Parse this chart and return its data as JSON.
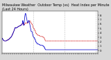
{
  "title_line1": "Milwaukee Weather  Outdoor Temp (vs)  Heat Index per Minute (Last 24 Hours)",
  "background_color": "#f0f0f0",
  "ylim": [
    -5,
    90
  ],
  "yticks": [
    0,
    10,
    20,
    30,
    40,
    50,
    60,
    70,
    80
  ],
  "ytick_labels": [
    "0",
    "1",
    "2",
    "3",
    "4",
    "5",
    "6",
    "7",
    "8"
  ],
  "line1_color": "#0000cc",
  "line1_style": "-",
  "line2_color": "#cc0000",
  "line2_style": "--",
  "vline_positions": [
    360,
    720,
    1080
  ],
  "title_fontsize": 3.5,
  "tick_fontsize": 2.8,
  "linewidth": 0.55,
  "fig_bg": "#d8d8d8",
  "plot_bg": "#ffffff",
  "outdoor_temp": [
    28,
    28,
    27,
    27,
    27,
    26,
    26,
    26,
    25,
    25,
    25,
    24,
    24,
    24,
    23,
    23,
    23,
    23,
    23,
    23,
    23,
    23,
    22,
    22,
    22,
    22,
    22,
    22,
    22,
    22,
    22,
    22,
    22,
    22,
    22,
    22,
    22,
    22,
    22,
    22,
    22,
    22,
    22,
    22,
    22,
    22,
    22,
    22,
    22,
    23,
    23,
    23,
    23,
    23,
    23,
    23,
    23,
    24,
    24,
    24,
    24,
    24,
    24,
    24,
    24,
    24,
    24,
    24,
    24,
    24,
    25,
    25,
    25,
    25,
    25,
    25,
    25,
    26,
    26,
    26,
    26,
    26,
    26,
    26,
    27,
    27,
    27,
    27,
    28,
    28,
    28,
    28,
    28,
    29,
    29,
    29,
    30,
    30,
    30,
    30,
    30,
    30,
    31,
    31,
    31,
    31,
    31,
    31,
    32,
    32,
    33,
    33,
    34,
    34,
    35,
    36,
    36,
    36,
    36,
    37,
    37,
    38,
    38,
    38,
    39,
    39,
    40,
    40,
    41,
    41,
    42,
    42,
    43,
    43,
    44,
    44,
    45,
    45,
    46,
    46,
    47,
    48,
    48,
    49,
    49,
    50,
    50,
    51,
    51,
    52,
    52,
    52,
    52,
    52,
    52,
    52,
    52,
    51,
    51,
    51,
    51,
    51,
    51,
    51,
    51,
    51,
    52,
    52,
    52,
    52,
    52,
    53,
    53,
    53,
    53,
    53,
    53,
    53,
    53,
    53,
    53,
    54,
    54,
    54,
    54,
    54,
    54,
    54,
    54,
    55,
    55,
    55,
    55,
    55,
    55,
    55,
    55,
    56,
    56,
    56,
    56,
    56,
    56,
    56,
    56,
    56,
    56,
    56,
    56,
    57,
    57,
    57,
    57,
    58,
    58,
    58,
    58,
    58,
    58,
    58,
    58,
    58,
    58,
    58,
    58,
    58,
    58,
    59,
    59,
    60,
    60,
    61,
    61,
    62,
    62,
    63,
    63,
    63,
    63,
    62,
    62,
    61,
    61,
    60,
    60,
    59,
    59,
    58,
    58,
    57,
    57,
    57,
    57,
    58,
    58,
    58,
    58,
    59,
    59,
    60,
    60,
    60,
    61,
    61,
    61,
    62,
    62,
    62,
    62,
    62,
    62,
    62,
    62,
    62,
    62,
    62,
    62,
    63,
    63,
    63,
    63,
    62,
    62,
    62,
    62,
    62,
    62,
    62,
    62,
    62,
    62,
    62,
    62,
    62,
    63,
    63,
    63,
    63,
    63,
    63,
    63,
    64,
    64,
    64,
    65,
    65,
    65,
    65,
    65,
    66,
    66,
    66,
    66,
    66,
    66,
    67,
    67,
    67,
    67,
    67,
    67,
    67,
    67,
    67,
    67,
    67,
    66,
    66,
    65,
    65,
    64,
    64,
    63,
    63,
    62,
    62,
    61,
    61,
    61,
    61,
    61,
    61,
    61,
    61,
    61,
    60,
    60,
    59,
    59,
    58,
    58,
    57,
    56,
    55,
    55,
    54,
    53,
    53,
    52,
    52,
    51,
    50,
    50,
    50,
    50,
    50,
    50,
    50,
    50,
    49,
    49,
    49,
    49,
    48,
    47,
    47,
    46,
    46,
    46,
    46,
    45,
    45,
    44,
    44,
    43,
    42,
    42,
    41,
    40,
    40,
    39,
    39,
    39,
    39,
    39,
    39,
    39,
    39,
    38,
    38,
    37,
    36,
    36,
    35,
    35,
    35,
    35,
    35,
    35,
    35,
    35,
    35,
    35,
    35,
    35,
    35,
    35,
    35,
    35,
    35,
    35,
    35,
    34,
    34,
    34,
    34,
    34,
    34,
    34,
    34,
    34,
    34,
    33,
    33,
    33,
    33,
    33,
    33,
    32,
    32,
    32,
    32,
    32,
    32,
    32,
    32,
    32,
    32,
    32,
    32,
    32,
    32,
    32,
    32,
    32,
    32,
    32,
    32,
    32,
    32,
    32,
    32,
    32,
    32,
    32,
    31,
    31,
    31,
    31,
    31,
    31,
    31,
    31,
    31,
    30,
    30,
    30,
    30,
    30,
    30,
    29,
    29,
    29,
    29,
    28,
    28,
    28,
    27,
    27,
    26,
    26,
    26,
    25,
    25,
    24,
    24,
    24,
    23,
    23,
    23,
    22,
    22,
    22,
    22,
    22,
    22,
    22,
    22,
    22,
    22,
    22,
    22,
    22,
    22,
    22,
    22,
    22,
    22,
    22,
    22,
    22,
    22,
    22,
    22,
    22,
    22,
    22,
    22,
    22,
    22,
    22,
    22,
    22,
    22,
    22,
    22,
    22,
    22,
    22,
    22,
    22,
    22,
    22,
    22,
    22,
    22,
    22,
    22,
    22,
    22,
    22,
    22,
    22,
    22,
    22,
    22,
    22,
    22,
    22,
    22,
    22,
    22,
    22,
    22,
    22,
    22,
    22,
    22,
    22,
    22,
    22,
    22,
    22,
    22,
    22,
    22,
    22,
    22,
    22,
    22,
    22,
    22,
    22,
    22,
    22,
    22,
    22,
    22,
    22,
    22,
    22,
    22,
    22,
    22,
    22,
    22,
    22,
    22,
    22,
    22,
    22,
    22,
    22,
    22,
    22,
    22,
    22,
    22,
    22,
    22,
    22,
    22,
    22,
    22,
    22,
    22,
    22,
    22,
    22,
    22,
    22,
    22,
    22,
    22,
    22,
    22,
    22,
    22,
    22,
    22,
    22,
    22,
    22,
    22,
    22,
    22,
    22,
    22,
    22,
    22,
    22,
    22,
    22,
    22,
    22,
    22,
    22,
    22,
    22,
    22,
    22,
    22,
    22,
    22,
    22,
    22,
    22,
    22,
    22,
    22,
    22,
    22,
    22,
    22,
    22,
    22,
    22,
    22,
    22,
    22,
    22,
    22,
    22,
    22,
    22,
    22,
    22,
    22,
    22,
    22,
    22,
    22,
    22,
    22,
    22,
    22,
    22,
    22,
    22,
    22,
    22,
    22,
    22,
    22,
    22,
    22,
    22,
    22,
    22,
    22,
    22,
    22,
    22,
    22,
    22,
    22,
    22,
    22,
    22,
    22,
    22,
    22,
    22,
    22,
    22,
    22,
    22,
    22,
    22,
    22,
    22,
    22,
    22,
    22,
    22,
    22,
    22,
    22,
    22,
    22,
    22,
    22,
    22,
    22,
    22,
    22,
    22,
    22,
    22,
    22,
    22,
    22,
    22,
    22,
    22,
    22,
    22,
    22,
    22,
    22,
    22,
    22,
    22,
    22,
    22,
    22,
    22,
    22,
    22,
    22,
    22,
    22,
    22,
    22,
    22,
    22,
    22,
    22,
    22,
    22,
    22,
    22,
    22,
    22,
    22,
    22,
    22,
    22,
    22,
    22,
    22,
    22,
    22,
    22,
    22,
    22,
    22,
    22,
    22,
    22,
    22,
    22,
    22,
    22,
    22,
    22,
    22,
    22,
    22,
    22,
    22,
    22,
    22,
    22,
    22,
    22,
    22,
    22,
    22,
    22,
    22,
    22,
    22,
    22,
    22,
    22,
    22,
    22,
    22,
    22,
    22,
    22,
    22,
    22,
    22,
    22,
    22,
    22,
    22,
    22,
    22,
    22,
    22,
    22,
    22,
    22,
    22,
    22,
    22,
    22,
    22,
    22,
    22,
    22,
    22,
    22,
    22,
    22,
    22,
    22,
    22,
    22,
    22,
    22,
    22,
    22,
    22,
    22,
    22,
    22,
    22,
    22,
    22,
    22,
    22,
    22,
    22,
    22,
    22,
    22,
    22,
    22,
    22,
    22,
    22,
    22,
    22,
    22,
    22,
    22,
    22,
    22,
    22,
    22,
    22,
    22,
    22,
    22,
    22,
    22,
    22,
    22,
    22,
    22,
    22,
    22,
    22,
    22,
    22,
    22,
    22,
    22,
    22,
    22,
    22,
    22,
    22,
    22,
    22,
    22,
    22,
    22,
    22,
    22,
    22,
    22,
    22,
    22,
    22,
    22,
    22,
    22,
    22,
    22,
    22,
    22,
    22,
    22,
    22,
    22,
    22,
    22,
    22,
    22,
    22,
    22,
    22,
    22,
    22,
    22,
    22,
    22,
    22,
    22,
    22,
    22,
    22,
    22,
    22,
    22,
    22,
    22,
    22,
    22,
    22,
    22,
    22,
    22,
    22,
    22,
    22,
    22,
    22,
    22,
    22,
    22,
    22,
    22,
    22,
    22,
    22,
    22,
    22,
    22,
    22,
    22,
    22,
    22,
    22,
    22,
    22,
    22,
    22,
    22,
    22,
    22,
    22,
    22,
    22,
    22,
    22,
    22,
    22,
    22,
    22,
    22,
    22,
    22,
    22,
    22,
    22,
    22,
    22,
    22,
    22,
    22,
    22,
    22,
    22,
    22,
    22,
    22,
    22,
    22,
    22,
    22,
    22,
    22,
    22,
    22,
    22,
    22,
    22,
    22,
    22,
    22,
    22,
    22,
    22,
    22,
    22,
    22,
    22,
    22,
    22,
    22,
    22,
    22,
    22,
    22,
    22,
    22,
    22,
    22,
    22,
    22,
    22,
    22,
    22,
    22,
    22,
    22,
    22,
    22,
    22,
    22,
    22,
    22,
    22,
    22,
    22,
    22,
    22,
    22,
    22,
    22,
    22,
    22,
    22,
    22,
    22,
    22,
    22,
    22,
    22,
    22,
    22,
    22,
    22,
    22,
    22,
    22,
    22,
    22,
    22,
    22,
    22,
    22,
    22,
    22,
    22,
    22,
    22,
    22,
    22,
    22,
    22,
    22,
    22,
    22,
    22,
    22,
    22,
    22
  ],
  "heat_index": [
    28,
    28,
    27,
    27,
    27,
    26,
    26,
    26,
    25,
    25,
    25,
    24,
    24,
    24,
    23,
    23,
    23,
    23,
    23,
    23,
    23,
    23,
    22,
    22,
    22,
    22,
    22,
    22,
    22,
    22,
    22,
    22,
    22,
    22,
    22,
    22,
    22,
    22,
    22,
    22,
    22,
    22,
    22,
    22,
    22,
    22,
    22,
    22,
    22,
    23,
    23,
    23,
    23,
    23,
    23,
    23,
    23,
    24,
    24,
    24,
    24,
    24,
    24,
    24,
    24,
    24,
    24,
    24,
    24,
    24,
    25,
    25,
    25,
    25,
    25,
    25,
    25,
    26,
    26,
    26,
    26,
    26,
    26,
    26,
    27,
    27,
    27,
    27,
    28,
    28,
    28,
    28,
    28,
    29,
    29,
    29,
    30,
    30,
    30,
    30,
    30,
    30,
    31,
    31,
    31,
    31,
    31,
    31,
    32,
    32,
    33,
    33,
    34,
    34,
    35,
    36,
    36,
    36,
    36,
    37,
    37,
    38,
    38,
    38,
    39,
    39,
    40,
    40,
    41,
    41,
    42,
    42,
    43,
    43,
    44,
    44,
    45,
    45,
    46,
    46,
    47,
    48,
    48,
    49,
    49,
    50,
    50,
    51,
    51,
    52,
    52,
    52,
    52,
    52,
    52,
    52,
    52,
    51,
    51,
    51,
    51,
    51,
    51,
    51,
    51,
    51,
    52,
    52,
    52,
    52,
    52,
    53,
    53,
    53,
    53,
    53,
    53,
    53,
    53,
    53,
    53,
    54,
    54,
    54,
    54,
    54,
    54,
    54,
    54,
    55,
    55,
    55,
    55,
    55,
    55,
    55,
    55,
    56,
    56,
    56,
    56,
    56,
    56,
    56,
    56,
    56,
    56,
    56,
    56,
    57,
    57,
    57,
    57,
    58,
    58,
    58,
    58,
    58,
    58,
    58,
    58,
    58,
    58,
    58,
    58,
    58,
    58,
    59,
    59,
    60,
    60,
    61,
    61,
    62,
    62,
    65,
    67,
    68,
    68,
    67,
    66,
    65,
    64,
    63,
    62,
    61,
    60,
    59,
    58,
    57,
    58,
    60,
    62,
    64,
    64,
    66,
    68,
    70,
    72,
    74,
    76,
    78,
    79,
    80,
    81,
    82,
    83,
    84,
    84,
    84,
    84,
    84,
    83,
    82,
    81,
    80,
    79,
    78,
    77,
    76,
    75,
    74,
    73,
    72,
    71,
    70,
    69,
    68,
    67,
    66,
    65,
    64,
    63,
    63,
    63,
    63,
    63,
    63,
    63,
    63,
    64,
    65,
    66,
    67,
    68,
    68,
    68,
    68,
    68,
    68,
    68,
    67,
    66,
    65,
    64,
    63,
    62,
    61,
    60,
    59,
    58,
    57,
    56,
    55,
    54,
    53,
    52,
    51,
    50,
    49,
    48,
    47,
    46,
    45,
    44,
    43,
    43,
    43,
    43,
    43,
    43,
    43,
    43,
    43,
    43,
    43,
    42,
    41,
    40,
    39,
    38,
    37,
    36,
    35,
    35,
    34,
    33,
    33,
    32,
    32,
    31,
    30,
    30,
    30,
    30,
    30,
    30,
    30,
    30,
    29,
    29,
    29,
    29,
    28,
    27,
    27,
    26,
    26,
    26,
    26,
    25,
    25,
    24,
    24,
    23,
    22,
    22,
    21,
    20,
    20,
    19,
    19,
    19,
    19,
    19,
    19,
    19,
    19,
    18,
    18,
    17,
    16,
    16,
    15,
    15,
    15,
    15,
    15,
    15,
    15,
    15,
    15,
    15,
    15,
    15,
    15,
    15,
    15,
    15,
    15,
    15,
    15,
    14,
    14,
    14,
    14,
    14,
    14,
    14,
    14,
    14,
    14,
    13,
    13,
    13,
    13,
    13,
    13,
    12,
    12,
    12,
    12,
    12,
    12,
    12,
    12,
    12,
    12,
    12,
    12,
    12,
    12,
    12,
    12,
    12,
    12,
    12,
    12,
    12,
    12,
    12,
    12,
    12,
    12,
    12,
    11,
    11,
    11,
    11,
    11,
    11,
    11,
    11,
    11,
    10,
    10,
    10,
    10,
    10,
    10,
    9,
    9,
    9,
    9,
    8,
    8,
    8,
    7,
    7,
    6,
    6,
    6,
    5,
    5,
    4,
    4,
    4,
    3,
    3,
    3,
    2,
    2,
    2,
    2,
    2,
    2,
    2,
    2,
    2,
    2,
    2,
    2,
    2,
    2,
    2,
    2,
    2,
    2,
    2,
    2,
    2,
    2,
    2,
    2,
    2,
    2,
    2,
    2,
    2,
    2,
    2,
    2,
    2,
    2,
    2,
    2,
    2,
    2,
    2,
    2,
    2,
    2,
    2,
    2,
    2,
    2,
    2,
    2,
    2,
    2,
    2,
    2,
    2,
    2,
    2,
    2,
    2,
    2,
    2,
    2,
    2,
    2,
    2,
    2,
    2,
    2,
    2,
    2,
    2,
    2,
    2,
    2,
    2,
    2,
    2,
    2,
    2,
    2,
    2,
    2,
    2,
    2,
    2,
    2,
    2,
    2,
    2,
    2,
    2,
    2,
    2,
    2,
    2,
    2,
    2,
    2,
    2,
    2,
    2,
    2,
    2,
    2,
    2,
    2,
    2,
    2,
    2,
    2,
    2,
    2,
    2,
    2,
    2,
    2,
    2,
    2,
    2,
    2,
    2,
    2,
    2,
    2,
    2,
    2,
    2,
    2,
    2,
    2,
    2,
    2,
    2,
    2,
    2,
    2,
    2,
    2,
    2,
    2,
    2,
    2,
    2,
    2,
    2,
    2,
    2,
    2,
    2,
    2,
    2,
    2,
    2,
    2,
    2,
    2,
    2,
    2,
    2,
    2,
    2,
    2,
    2,
    2,
    2,
    2,
    2,
    2,
    2,
    2,
    2,
    2,
    2,
    2,
    2,
    2,
    2,
    2,
    2,
    2,
    2,
    2,
    2,
    2,
    2,
    2,
    2,
    2,
    2,
    2,
    2,
    2,
    2,
    2,
    2,
    2,
    2,
    2,
    2,
    2,
    2,
    2,
    2,
    2,
    2,
    2,
    2,
    2,
    2,
    2,
    2,
    2,
    2,
    2,
    2,
    2,
    2,
    2,
    2,
    2,
    2,
    2,
    2,
    2,
    2,
    2,
    2,
    2,
    2,
    2,
    2,
    2,
    2,
    2,
    2,
    2,
    2,
    2,
    2,
    2,
    2,
    2,
    2,
    2,
    2,
    2,
    2,
    2,
    2,
    2,
    2,
    2,
    2,
    2,
    2,
    2,
    2,
    2,
    2,
    2,
    2,
    2,
    2,
    2,
    2,
    2,
    2,
    2,
    2,
    2,
    2,
    2,
    2,
    2,
    2,
    2,
    2,
    2,
    2,
    2,
    2,
    2,
    2,
    2,
    2,
    2,
    2,
    2,
    2,
    2,
    2,
    2,
    2,
    2,
    2,
    2,
    2,
    2,
    2,
    2,
    2,
    2,
    2,
    2,
    2,
    2,
    2,
    2,
    2,
    2,
    2,
    2,
    2,
    2,
    2,
    2,
    2,
    2,
    2,
    2,
    2,
    2,
    2,
    2,
    2,
    2,
    2,
    2,
    2,
    2,
    2,
    2,
    2,
    2,
    2,
    2,
    2,
    2,
    2,
    2,
    2,
    2,
    2,
    2,
    2,
    2,
    2,
    2,
    2,
    2,
    2,
    2,
    2,
    2,
    2,
    2,
    2,
    2,
    2,
    2,
    2,
    2,
    2,
    2,
    2,
    2,
    2,
    2,
    2,
    2,
    2,
    2,
    2,
    2,
    2,
    2,
    2,
    2,
    2,
    2,
    2,
    2,
    2,
    2,
    2,
    2,
    2,
    2,
    2,
    2,
    2,
    2,
    2,
    2,
    2,
    2,
    2,
    2,
    2,
    2,
    2,
    2,
    2,
    2,
    2,
    2,
    2,
    2,
    2,
    2,
    2,
    2,
    2,
    2,
    2,
    2,
    2,
    2,
    2,
    2,
    2,
    2,
    2,
    2,
    2,
    2,
    2,
    2,
    2,
    2,
    2,
    2,
    2,
    2,
    2,
    2,
    2,
    2,
    2,
    2,
    2,
    2,
    2,
    2,
    2,
    2,
    2,
    2,
    2,
    2,
    2,
    2,
    2,
    2,
    2,
    2,
    2,
    2,
    2,
    2,
    2,
    2,
    2,
    2,
    2,
    2,
    2,
    2,
    2,
    2,
    2,
    2,
    2,
    2,
    2,
    2,
    2,
    2,
    2,
    2,
    2,
    2,
    2,
    2,
    2,
    2,
    2,
    2,
    2,
    2,
    2,
    2,
    2,
    2,
    2,
    2,
    2,
    2,
    2,
    2,
    2,
    2,
    2,
    2,
    2,
    2,
    2,
    2,
    2,
    2,
    2,
    2,
    2,
    2,
    2,
    2,
    2,
    2,
    2,
    2,
    2,
    2,
    2,
    2,
    2,
    2,
    2,
    2,
    2,
    2,
    2,
    2,
    2,
    2,
    2,
    2,
    2,
    2,
    2,
    2,
    2,
    2,
    2,
    2,
    2,
    2,
    2,
    2,
    2,
    2,
    2,
    2,
    2,
    2,
    2,
    2,
    2,
    2,
    2,
    2,
    2,
    2,
    2,
    2,
    2,
    2,
    2,
    2,
    2,
    2,
    2,
    2,
    2,
    2,
    2,
    2,
    2,
    2,
    2,
    2,
    2,
    2,
    2,
    2,
    2,
    2,
    2,
    2,
    2,
    2,
    2,
    2,
    2,
    2,
    2,
    2,
    2,
    2,
    2,
    2,
    2,
    2,
    2,
    2,
    2,
    2
  ]
}
